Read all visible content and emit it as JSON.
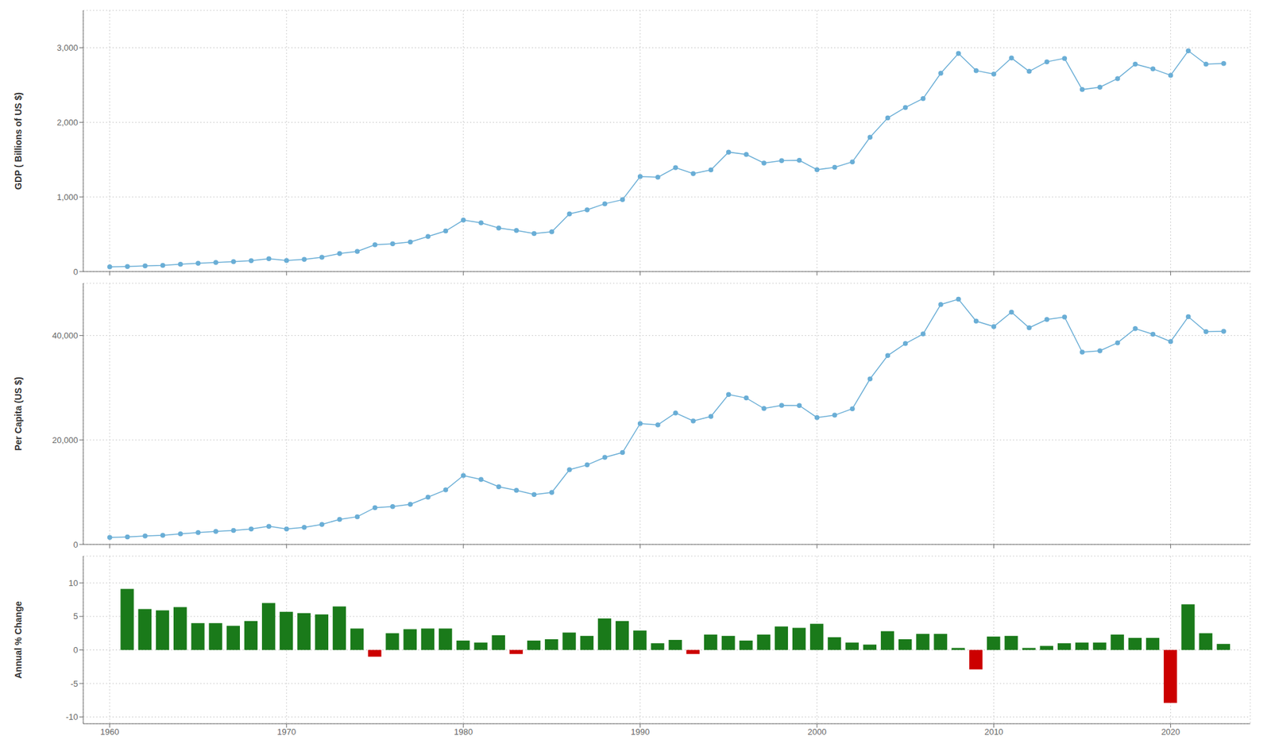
{
  "chart_data": [
    {
      "type": "line",
      "ylabel": "GDP ( Billions of US $)",
      "marker": "circle",
      "color": "#6aaed6",
      "grid": true,
      "tick_labels": "y",
      "x": [
        1960,
        1961,
        1962,
        1963,
        1964,
        1965,
        1966,
        1967,
        1968,
        1969,
        1970,
        1971,
        1972,
        1973,
        1974,
        1975,
        1976,
        1977,
        1978,
        1979,
        1980,
        1981,
        1982,
        1983,
        1984,
        1985,
        1986,
        1987,
        1988,
        1989,
        1990,
        1991,
        1992,
        1993,
        1994,
        1995,
        1996,
        1997,
        1998,
        1999,
        2000,
        2001,
        2002,
        2003,
        2004,
        2005,
        2006,
        2007,
        2008,
        2009,
        2010,
        2011,
        2012,
        2013,
        2014,
        2015,
        2016,
        2017,
        2018,
        2019,
        2020,
        2021,
        2022,
        2023
      ],
      "values": [
        62.1,
        67.7,
        76.2,
        83.1,
        97.7,
        110.1,
        121.5,
        131.7,
        145.6,
        171.5,
        147.0,
        163.8,
        192.0,
        242.4,
        269.7,
        359.6,
        373.0,
        396.7,
        470.4,
        543.9,
        689.5,
        653.5,
        583.2,
        549.9,
        510.0,
        533.5,
        773.5,
        826.6,
        908.7,
        963.3,
        1272.6,
        1263.8,
        1392.6,
        1312.2,
        1362.3,
        1600.6,
        1568.5,
        1454.5,
        1487.2,
        1490.7,
        1365.6,
        1396.9,
        1470.2,
        1800.2,
        2058.6,
        2199.2,
        2318.4,
        2657.2,
        2923.5,
        2693.3,
        2646.8,
        2861.7,
        2683.0,
        2811.1,
        2856.8,
        2439.4,
        2471.3,
        2586.9,
        2780.2,
        2716.0,
        2630.3,
        2957.9,
        2779.1,
        2787.4
      ],
      "xlim": [
        1958.5,
        2024.5
      ],
      "xticks": [
        1960,
        1970,
        1980,
        1990,
        2000,
        2010,
        2020
      ],
      "ylim": [
        0,
        3500
      ],
      "yticks": [
        0,
        {
          "value": 1000,
          "label": "1,000"
        },
        {
          "value": 2000,
          "label": "2,000"
        },
        {
          "value": 3000,
          "label": "3,000"
        }
      ]
    },
    {
      "type": "line",
      "ylabel": "Per Capita (US $)",
      "marker": "circle",
      "color": "#6aaed6",
      "grid": true,
      "tick_labels": "y",
      "x": [
        1960,
        1961,
        1962,
        1963,
        1964,
        1965,
        1966,
        1967,
        1968,
        1969,
        1970,
        1971,
        1972,
        1973,
        1974,
        1975,
        1976,
        1977,
        1978,
        1979,
        1980,
        1981,
        1982,
        1983,
        1984,
        1985,
        1986,
        1987,
        1988,
        1989,
        1990,
        1991,
        1992,
        1993,
        1994,
        1995,
        1996,
        1997,
        1998,
        1999,
        2000,
        2001,
        2002,
        2003,
        2004,
        2005,
        2006,
        2007,
        2008,
        2009,
        2010,
        2011,
        2012,
        2013,
        2014,
        2015,
        2016,
        2017,
        2018,
        2019,
        2020,
        2021,
        2022,
        2023
      ],
      "values": [
        1335,
        1441,
        1607,
        1740,
        2032,
        2274,
        2496,
        2686,
        2953,
        3467,
        2956,
        3270,
        3815,
        4790,
        5301,
        7039,
        7258,
        7681,
        9057,
        10434,
        13185,
        12430,
        11045,
        10359,
        9561,
        9944,
        14308,
        15221,
        16665,
        17588,
        23139,
        22901,
        25171,
        23647,
        24498,
        28685,
        28035,
        26019,
        26619,
        26597,
        24294,
        24738,
        25966,
        31686,
        36150,
        38459,
        40286,
        45937,
        46949,
        42744,
        41704,
        44477,
        41476,
        43060,
        43529,
        36818,
        37069,
        38600,
        41316,
        40233,
        38830,
        43590,
        40721,
        40800
      ],
      "xlim": [
        1958.5,
        2024.5
      ],
      "xticks": [
        1960,
        1970,
        1980,
        1990,
        2000,
        2010,
        2020
      ],
      "ylim": [
        0,
        50000
      ],
      "yticks": [
        0,
        {
          "value": 20000,
          "label": "20,000"
        },
        {
          "value": 40000,
          "label": "40,000"
        }
      ]
    },
    {
      "type": "bar",
      "ylabel": "Annual % Change",
      "grid": true,
      "x": [
        1961,
        1962,
        1963,
        1964,
        1965,
        1966,
        1967,
        1968,
        1969,
        1970,
        1971,
        1972,
        1973,
        1974,
        1975,
        1976,
        1977,
        1978,
        1979,
        1980,
        1981,
        1982,
        1983,
        1984,
        1985,
        1986,
        1987,
        1988,
        1989,
        1990,
        1991,
        1992,
        1993,
        1994,
        1995,
        1996,
        1997,
        1998,
        1999,
        2000,
        2001,
        2002,
        2003,
        2004,
        2005,
        2006,
        2007,
        2008,
        2009,
        2010,
        2011,
        2012,
        2013,
        2014,
        2015,
        2016,
        2017,
        2018,
        2019,
        2020,
        2021,
        2022,
        2023
      ],
      "values": [
        9.1,
        6.1,
        5.9,
        6.4,
        4.0,
        4.0,
        3.6,
        4.3,
        7.0,
        5.7,
        5.5,
        5.3,
        6.5,
        3.2,
        -1.0,
        2.5,
        3.1,
        3.2,
        3.2,
        1.4,
        1.1,
        2.2,
        -0.6,
        1.4,
        1.6,
        2.6,
        2.1,
        4.7,
        4.3,
        2.9,
        1.0,
        1.5,
        -0.6,
        2.3,
        2.1,
        1.4,
        2.3,
        3.5,
        3.3,
        3.9,
        1.9,
        1.1,
        0.8,
        2.8,
        1.6,
        2.4,
        2.4,
        0.3,
        -2.9,
        2.0,
        2.1,
        0.3,
        0.6,
        1.0,
        1.1,
        1.1,
        2.3,
        1.8,
        1.8,
        -7.9,
        6.8,
        2.5,
        0.9
      ],
      "colors": [
        "#1a7a1a",
        "#1a7a1a",
        "#1a7a1a",
        "#1a7a1a",
        "#1a7a1a",
        "#1a7a1a",
        "#1a7a1a",
        "#1a7a1a",
        "#1a7a1a",
        "#1a7a1a",
        "#1a7a1a",
        "#1a7a1a",
        "#1a7a1a",
        "#1a7a1a",
        "#cc0000",
        "#1a7a1a",
        "#1a7a1a",
        "#1a7a1a",
        "#1a7a1a",
        "#1a7a1a",
        "#1a7a1a",
        "#1a7a1a",
        "#cc0000",
        "#1a7a1a",
        "#1a7a1a",
        "#1a7a1a",
        "#1a7a1a",
        "#1a7a1a",
        "#1a7a1a",
        "#1a7a1a",
        "#1a7a1a",
        "#1a7a1a",
        "#cc0000",
        "#1a7a1a",
        "#1a7a1a",
        "#1a7a1a",
        "#1a7a1a",
        "#1a7a1a",
        "#1a7a1a",
        "#1a7a1a",
        "#1a7a1a",
        "#1a7a1a",
        "#1a7a1a",
        "#1a7a1a",
        "#1a7a1a",
        "#1a7a1a",
        "#1a7a1a",
        "#1a7a1a",
        "#cc0000",
        "#1a7a1a",
        "#1a7a1a",
        "#1a7a1a",
        "#1a7a1a",
        "#1a7a1a",
        "#1a7a1a",
        "#1a7a1a",
        "#1a7a1a",
        "#1a7a1a",
        "#1a7a1a",
        "#cc0000",
        "#1a7a1a",
        "#1a7a1a",
        "#1a7a1a"
      ],
      "xlim": [
        1958.5,
        2024.5
      ],
      "xticks": [
        1960,
        1970,
        1980,
        1990,
        2000,
        2010,
        2020
      ],
      "ylim": [
        -11,
        14
      ],
      "yticks": [
        -10,
        -5,
        0,
        5,
        10
      ]
    }
  ]
}
